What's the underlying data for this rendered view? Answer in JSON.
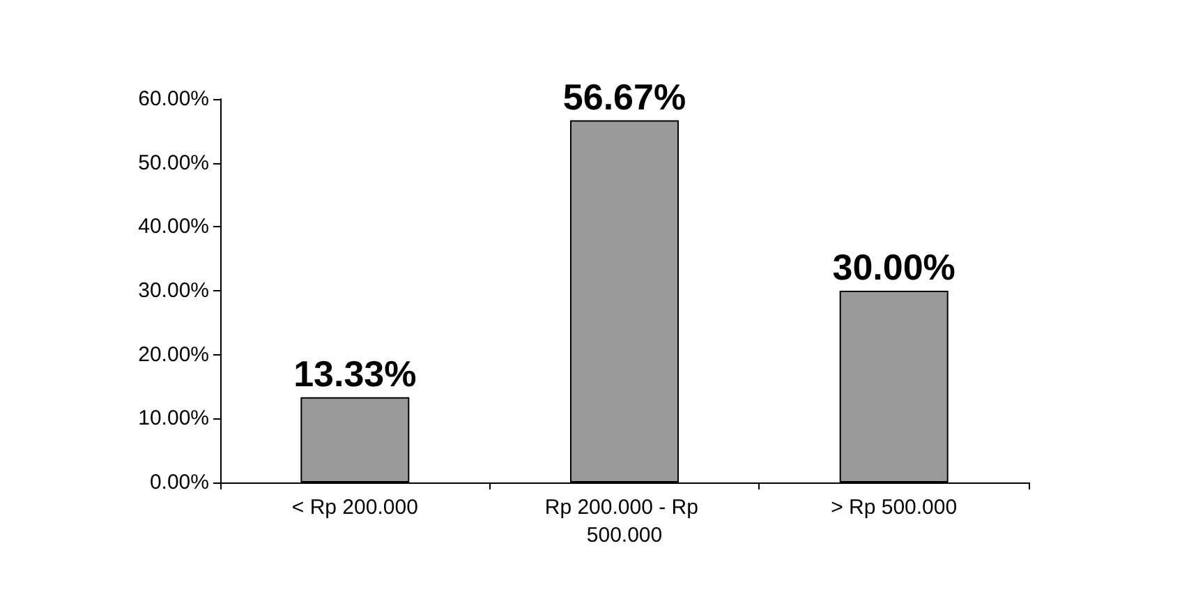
{
  "chart_data": {
    "type": "bar",
    "categories": [
      "< Rp 200.000",
      "Rp 200.000 - Rp 500.000",
      "> Rp 500.000"
    ],
    "values": [
      13.33,
      56.67,
      30.0
    ],
    "color": "#999999",
    "value_labels": [
      "13.33%",
      "56.67%",
      "30.00%"
    ],
    "ylim": [
      0,
      60
    ],
    "yticks": [
      {
        "value": 0,
        "label": "0.00%"
      },
      {
        "value": 10,
        "label": "10.00%"
      },
      {
        "value": 20,
        "label": "20.00%"
      },
      {
        "value": 30,
        "label": "30.00%"
      },
      {
        "value": 40,
        "label": "40.00%"
      },
      {
        "value": 50,
        "label": "50.00%"
      },
      {
        "value": 60,
        "label": "60.00%"
      }
    ],
    "grid": false
  }
}
